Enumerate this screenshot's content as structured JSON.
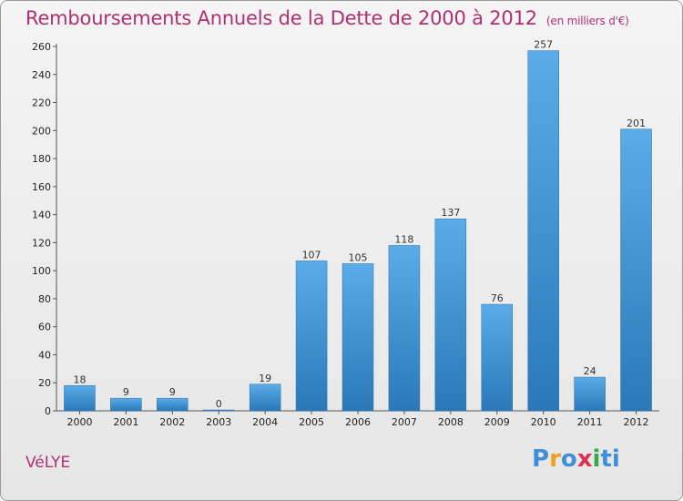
{
  "title": "Remboursements Annuels de la Dette de 2000 à 2012",
  "subtitle": "(en milliers d'€)",
  "commune": "VéLYE",
  "logo_text": "Proxiti",
  "chart_data": {
    "type": "bar",
    "title": "Remboursements Annuels de la Dette de 2000 à 2012",
    "subtitle": "(en milliers d'€)",
    "xlabel": "",
    "ylabel": "",
    "categories": [
      "2000",
      "2001",
      "2002",
      "2003",
      "2004",
      "2005",
      "2006",
      "2007",
      "2008",
      "2009",
      "2010",
      "2011",
      "2012"
    ],
    "values": [
      18,
      9,
      9,
      0,
      19,
      107,
      105,
      118,
      137,
      76,
      257,
      24,
      201
    ],
    "ylim": [
      0,
      260
    ],
    "yticks": [
      0,
      20,
      40,
      60,
      80,
      100,
      120,
      140,
      160,
      180,
      200,
      220,
      240,
      260
    ],
    "grid": false,
    "legend": "none",
    "bar_color": "#3a8fd6"
  }
}
